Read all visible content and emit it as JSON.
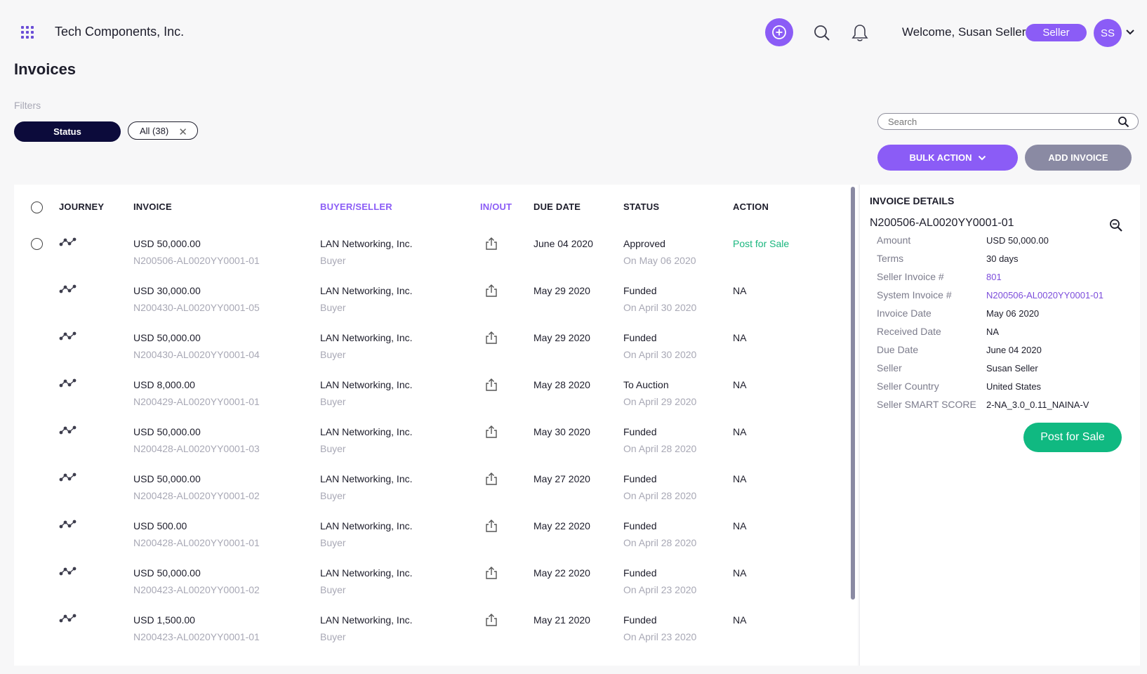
{
  "header": {
    "company": "Tech Components, Inc.",
    "welcome": "Welcome, Susan Seller",
    "role": "Seller",
    "avatar_initials": "SS"
  },
  "page": {
    "title": "Invoices"
  },
  "filters": {
    "label": "Filters",
    "status_label": "Status",
    "all_label": "All (38)"
  },
  "search": {
    "placeholder": "Search"
  },
  "actions": {
    "bulk_label": "BULK ACTION",
    "add_label": "ADD INVOICE"
  },
  "table": {
    "columns": [
      "JOURNEY",
      "INVOICE",
      "BUYER/SELLER",
      "IN/OUT",
      "DUE DATE",
      "STATUS",
      "ACTION"
    ],
    "rows": [
      {
        "amount": "USD 50,000.00",
        "invoice_id": "N200506-AL0020YY0001-01",
        "party": "LAN Networking, Inc.",
        "role": "Buyer",
        "due": "June 04 2020",
        "status": "Approved",
        "status_date": "On May 06 2020",
        "action": "Post for Sale"
      },
      {
        "amount": "USD 30,000.00",
        "invoice_id": "N200430-AL0020YY0001-05",
        "party": "LAN Networking, Inc.",
        "role": "Buyer",
        "due": "May 29 2020",
        "status": "Funded",
        "status_date": "On April 30 2020",
        "action": "NA"
      },
      {
        "amount": "USD 50,000.00",
        "invoice_id": "N200430-AL0020YY0001-04",
        "party": "LAN Networking, Inc.",
        "role": "Buyer",
        "due": "May 29 2020",
        "status": "Funded",
        "status_date": "On April 30 2020",
        "action": "NA"
      },
      {
        "amount": "USD 8,000.00",
        "invoice_id": "N200429-AL0020YY0001-01",
        "party": "LAN Networking, Inc.",
        "role": "Buyer",
        "due": "May 28 2020",
        "status": "To Auction",
        "status_date": "On April 29 2020",
        "action": "NA"
      },
      {
        "amount": "USD 50,000.00",
        "invoice_id": "N200428-AL0020YY0001-03",
        "party": "LAN Networking, Inc.",
        "role": "Buyer",
        "due": "May 30 2020",
        "status": "Funded",
        "status_date": "On April 28 2020",
        "action": "NA"
      },
      {
        "amount": "USD 50,000.00",
        "invoice_id": "N200428-AL0020YY0001-02",
        "party": "LAN Networking, Inc.",
        "role": "Buyer",
        "due": "May 27 2020",
        "status": "Funded",
        "status_date": "On April 28 2020",
        "action": "NA"
      },
      {
        "amount": "USD 500.00",
        "invoice_id": "N200428-AL0020YY0001-01",
        "party": "LAN Networking, Inc.",
        "role": "Buyer",
        "due": "May 22 2020",
        "status": "Funded",
        "status_date": "On April 28 2020",
        "action": "NA"
      },
      {
        "amount": "USD 50,000.00",
        "invoice_id": "N200423-AL0020YY0001-02",
        "party": "LAN Networking, Inc.",
        "role": "Buyer",
        "due": "May 22 2020",
        "status": "Funded",
        "status_date": "On April 23 2020",
        "action": "NA"
      },
      {
        "amount": "USD 1,500.00",
        "invoice_id": "N200423-AL0020YY0001-01",
        "party": "LAN Networking, Inc.",
        "role": "Buyer",
        "due": "May 21 2020",
        "status": "Funded",
        "status_date": "On April 23 2020",
        "action": "NA"
      }
    ]
  },
  "details": {
    "title": "INVOICE DETAILS",
    "invoice_id": "N200506-AL0020YY0001-01",
    "fields": [
      {
        "label": "Amount",
        "value": "USD 50,000.00"
      },
      {
        "label": "Terms",
        "value": "30 days"
      },
      {
        "label": "Seller Invoice #",
        "value": "801"
      },
      {
        "label": "System Invoice #",
        "value": "N200506-AL0020YY0001-01"
      },
      {
        "label": "Invoice Date",
        "value": "May 06 2020"
      },
      {
        "label": "Received Date",
        "value": "NA"
      },
      {
        "label": "Due Date",
        "value": "June 04 2020"
      },
      {
        "label": "Seller",
        "value": "Susan Seller"
      },
      {
        "label": "Seller Country",
        "value": "United States"
      },
      {
        "label": "Seller SMART SCORE",
        "value": "2-NA_3.0_0.11_NAINA-V"
      }
    ],
    "post_label": "Post for Sale"
  },
  "colors": {
    "accent": "#8b5cf6",
    "navy": "#0c0b3b",
    "green": "#10b981",
    "muted": "#a8a8b5"
  },
  "icons": [
    "apps-grid-icon",
    "plus-circle-icon",
    "search-icon",
    "bell-icon",
    "chevron-down-icon",
    "close-icon",
    "journey-icon",
    "share-icon",
    "zoom-icon"
  ]
}
